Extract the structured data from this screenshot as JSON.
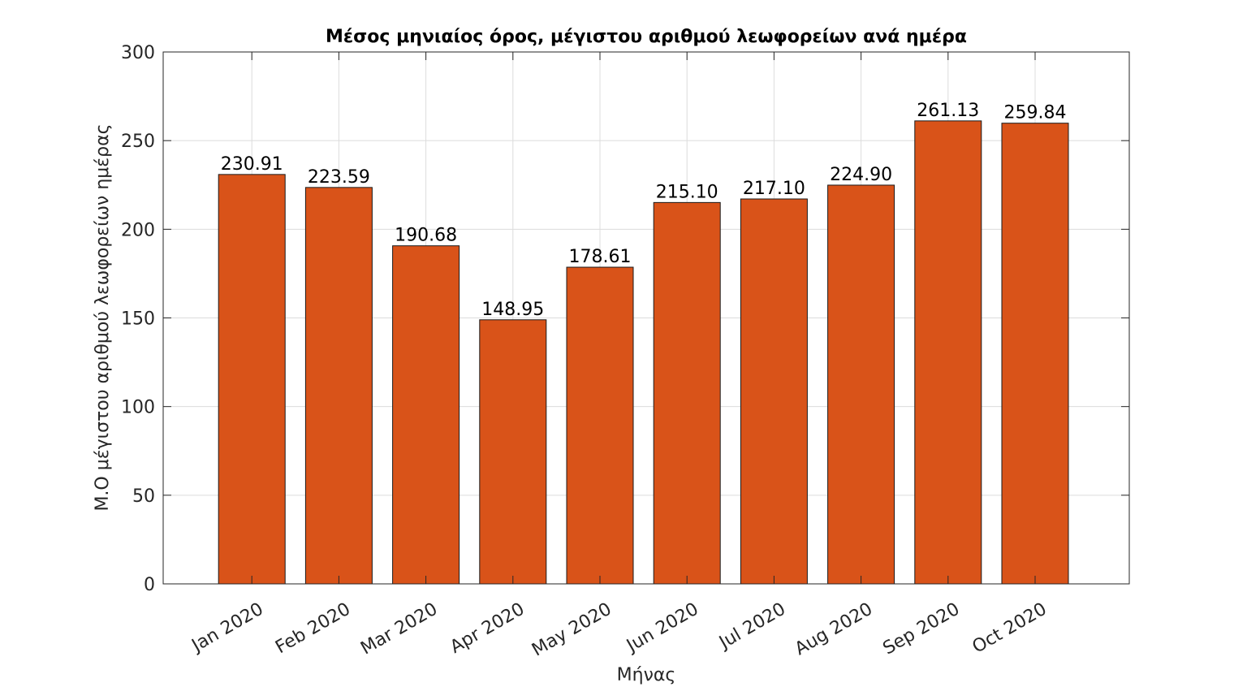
{
  "chart_data": {
    "type": "bar",
    "title": "Μέσος μηνιαίος όρος, μέγιστου αριθμού λεωφορείων ανά ημέρα",
    "xlabel": "Μήνας",
    "ylabel": "Μ.Ο μέγιστου αριθμού λεωφορείων ημέρας",
    "categories": [
      "Jan 2020",
      "Feb 2020",
      "Mar 2020",
      "Apr 2020",
      "May 2020",
      "Jun 2020",
      "Jul 2020",
      "Aug 2020",
      "Sep 2020",
      "Oct 2020"
    ],
    "values": [
      230.91,
      223.59,
      190.68,
      148.95,
      178.61,
      215.1,
      217.1,
      224.9,
      261.13,
      259.84
    ],
    "data_labels": [
      "230.91",
      "223.59",
      "190.68",
      "148.95",
      "178.61",
      "215.10",
      "217.10",
      "224.90",
      "261.13",
      "259.84"
    ],
    "ylim": [
      0,
      300
    ],
    "yticks": [
      "0",
      "50",
      "100",
      "150",
      "200",
      "250",
      "300"
    ],
    "grid": true,
    "bar_color": "#d95319"
  }
}
